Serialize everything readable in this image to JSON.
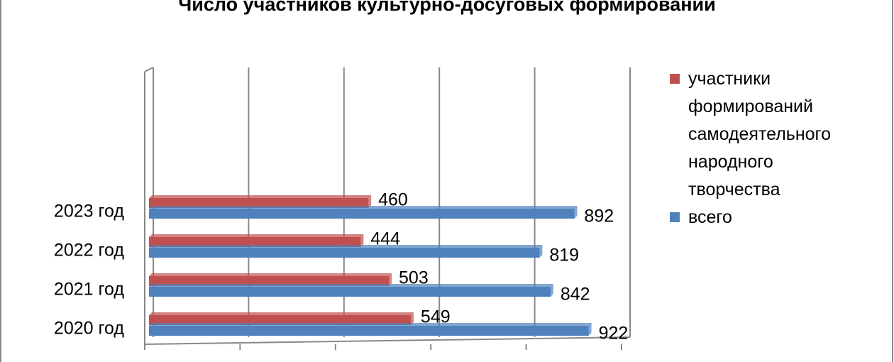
{
  "chart_data": {
    "type": "bar",
    "orientation": "horizontal",
    "title": "Число участников культурно-досуговых формирований",
    "categories": [
      "2020 год",
      "2021 год",
      "2022 год",
      "2023 год"
    ],
    "series": [
      {
        "name": "участники формирований самодеятельного народного творчества",
        "color": "#c0504d",
        "values": [
          549,
          503,
          444,
          460
        ]
      },
      {
        "name": "всего",
        "color": "#4f81bd",
        "values": [
          922,
          842,
          819,
          892
        ]
      }
    ],
    "xlim": [
      0,
      1000
    ],
    "xticks": [
      0,
      200,
      400,
      600,
      800,
      1000
    ],
    "grid": true,
    "legend": "right"
  }
}
